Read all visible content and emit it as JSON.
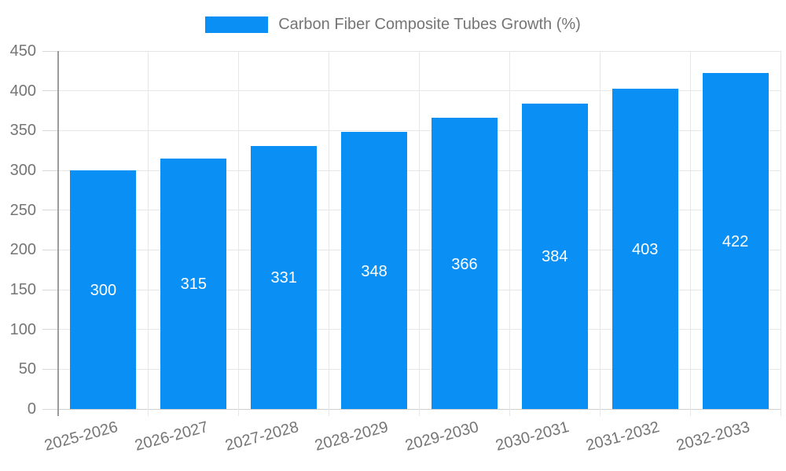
{
  "chart_data": {
    "type": "bar",
    "title": "Carbon Fiber Composite Tubes Growth (%)",
    "categories": [
      "2025-2026",
      "2026-2027",
      "2027-2028",
      "2028-2029",
      "2029-2030",
      "2030-2031",
      "2031-2032",
      "2032-2033"
    ],
    "series": [
      {
        "name": "Carbon Fiber Composite Tubes Growth (%)",
        "values": [
          300,
          315,
          331,
          348,
          366,
          384,
          403,
          422
        ]
      }
    ],
    "xlabel": "",
    "ylabel": "",
    "ylim": [
      0,
      450
    ],
    "yticks": [
      0,
      50,
      100,
      150,
      200,
      250,
      300,
      350,
      400,
      450
    ],
    "grid": true,
    "legend_position": "top-center",
    "bar_label_position": "middle-inside",
    "x_label_rotation_deg": -15,
    "colors": {
      "bar": "#0a90f5",
      "grid": "#e7e7e7",
      "baseline": "#cfcfcf",
      "tick": "#d6d6d6",
      "axis": "#9b9b9b",
      "text": "#757575",
      "bar_label": "#ffffff",
      "background": "#ffffff"
    }
  }
}
